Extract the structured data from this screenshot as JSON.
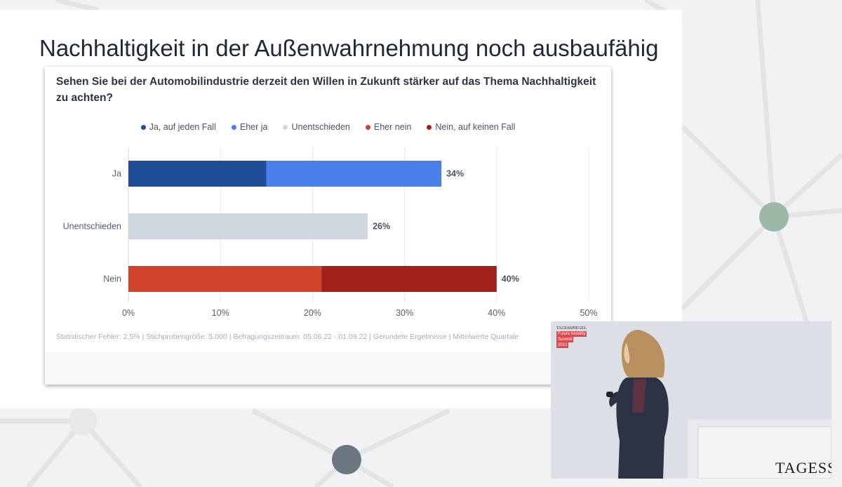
{
  "slide": {
    "title": "Nachhaltigkeit in der Außenwahrnehmung noch ausbaufähig",
    "accent_green": "#9bb8a6",
    "accent_slate": "#6b7780"
  },
  "chart_data": {
    "type": "bar",
    "orientation": "horizontal",
    "stacked": true,
    "title": "Sehen Sie bei der Automobilindustrie derzeit den Willen in Zukunft stärker auf das Thema Nachhaltigkeit zu achten?",
    "categories": [
      "Ja",
      "Unentschieden",
      "Nein"
    ],
    "series": [
      {
        "name": "Ja, auf jeden Fall",
        "color": "#1f4e96",
        "values": [
          15,
          0,
          0
        ]
      },
      {
        "name": "Eher ja",
        "color": "#4a7ee8",
        "values": [
          19,
          0,
          0
        ]
      },
      {
        "name": "Unentschieden",
        "color": "#d0d7de",
        "values": [
          0,
          26,
          0
        ]
      },
      {
        "name": "Eher nein",
        "color": "#d0412b",
        "values": [
          0,
          0,
          21
        ]
      },
      {
        "name": "Nein, auf keinen Fall",
        "color": "#a0211a",
        "values": [
          0,
          0,
          19
        ]
      }
    ],
    "totals": [
      "34%",
      "26%",
      "40%"
    ],
    "xlim": [
      0,
      50
    ],
    "xticks": [
      "0%",
      "10%",
      "20%",
      "30%",
      "40%",
      "50%"
    ],
    "grid": true,
    "legend_position": "top",
    "footnote": "Statistischer Fehler: 2,5% | Stichprobengröße: 5.000 | Befragungszeitraum: 05.06.22 - 01.09.22 | Gerundete Ergebnisse | Mittelwerte Quartale"
  },
  "video": {
    "logo_line1": "TAGESSPIEGEL",
    "logo_line2": "Future Mobility",
    "logo_line3": "Summit",
    "logo_line4": "2022",
    "podium_text": "TAGESSPI"
  }
}
